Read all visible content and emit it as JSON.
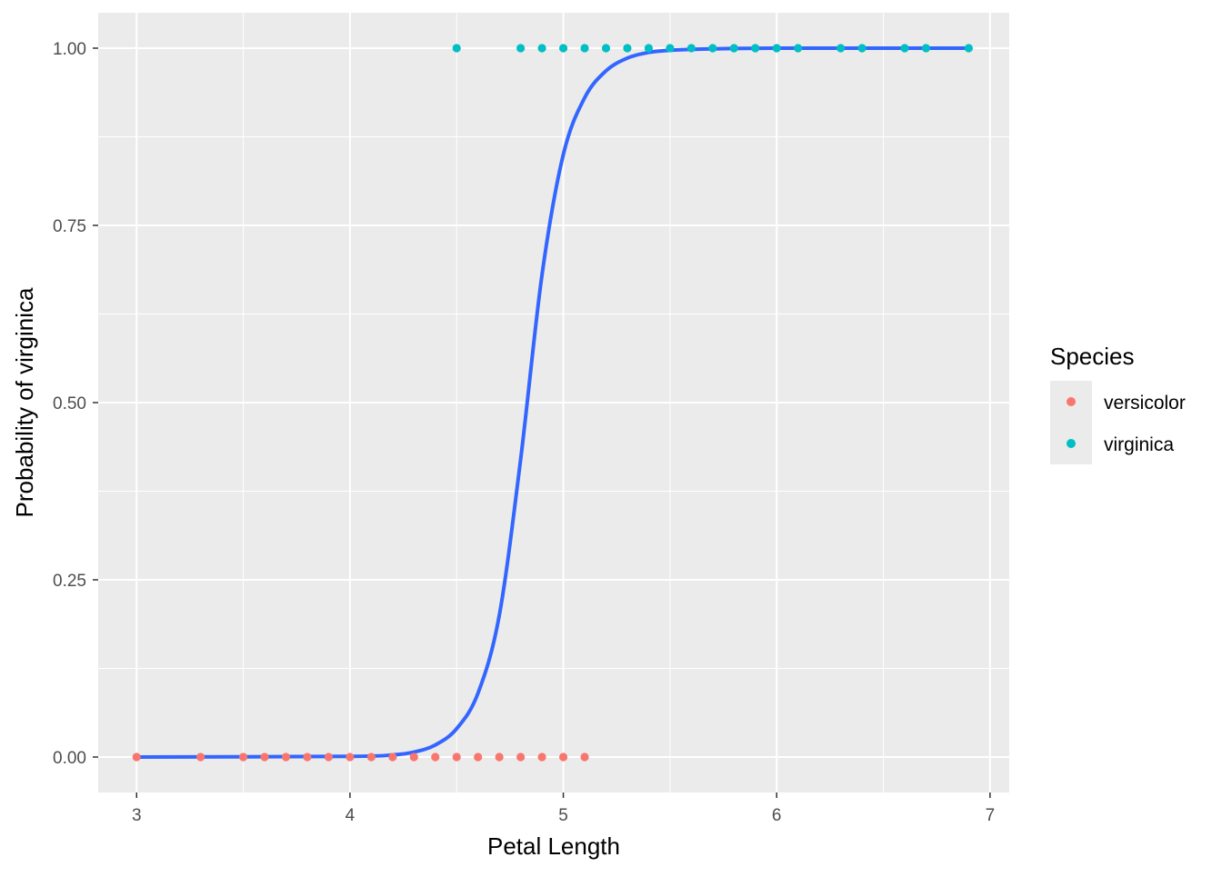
{
  "chart_data": {
    "type": "scatter",
    "title": "",
    "xlabel": "Petal Length",
    "ylabel": "Probability of virginica",
    "xlim": [
      2.82,
      7.09
    ],
    "ylim": [
      -0.05,
      1.05
    ],
    "x_ticks": [
      3,
      4,
      5,
      6,
      7
    ],
    "x_tick_labels": [
      "3",
      "4",
      "5",
      "6",
      "7"
    ],
    "y_ticks": [
      0,
      0.25,
      0.5,
      0.75,
      1
    ],
    "y_tick_labels": [
      "0.00",
      "0.25",
      "0.50",
      "0.75",
      "1.00"
    ],
    "grid": true,
    "legend": {
      "title": "Species",
      "position": "right",
      "entries": [
        {
          "label": "versicolor",
          "color": "#F8766D"
        },
        {
          "label": "virginica",
          "color": "#00BFC4"
        }
      ]
    },
    "series": [
      {
        "name": "versicolor",
        "color": "#F8766D",
        "x": [
          3.0,
          3.3,
          3.5,
          3.6,
          3.7,
          3.8,
          3.9,
          4.0,
          4.1,
          4.2,
          4.3,
          4.4,
          4.5,
          4.6,
          4.7,
          4.8,
          4.9,
          5.0,
          5.1
        ],
        "y": [
          0,
          0,
          0,
          0,
          0,
          0,
          0,
          0,
          0,
          0,
          0,
          0,
          0,
          0,
          0,
          0,
          0,
          0,
          0
        ]
      },
      {
        "name": "virginica",
        "color": "#00BFC4",
        "x": [
          4.5,
          4.8,
          4.9,
          5.0,
          5.1,
          5.2,
          5.3,
          5.4,
          5.5,
          5.6,
          5.7,
          5.8,
          5.9,
          6.0,
          6.1,
          6.3,
          6.4,
          6.6,
          6.7,
          6.9
        ],
        "y": [
          1,
          1,
          1,
          1,
          1,
          1,
          1,
          1,
          1,
          1,
          1,
          1,
          1,
          1,
          1,
          1,
          1,
          1,
          1,
          1
        ]
      }
    ],
    "fit_line": {
      "color": "#3366FF",
      "x": [
        3.0,
        4.0,
        4.2,
        4.3,
        4.4,
        4.5,
        4.6,
        4.7,
        4.8,
        4.9,
        5.0,
        5.1,
        5.2,
        5.3,
        5.4,
        5.5,
        5.7,
        6.0,
        6.9
      ],
      "y": [
        0.0,
        0.001,
        0.003,
        0.007,
        0.017,
        0.04,
        0.09,
        0.2,
        0.42,
        0.68,
        0.85,
        0.93,
        0.968,
        0.986,
        0.994,
        0.997,
        0.999,
        1.0,
        1.0
      ]
    }
  }
}
